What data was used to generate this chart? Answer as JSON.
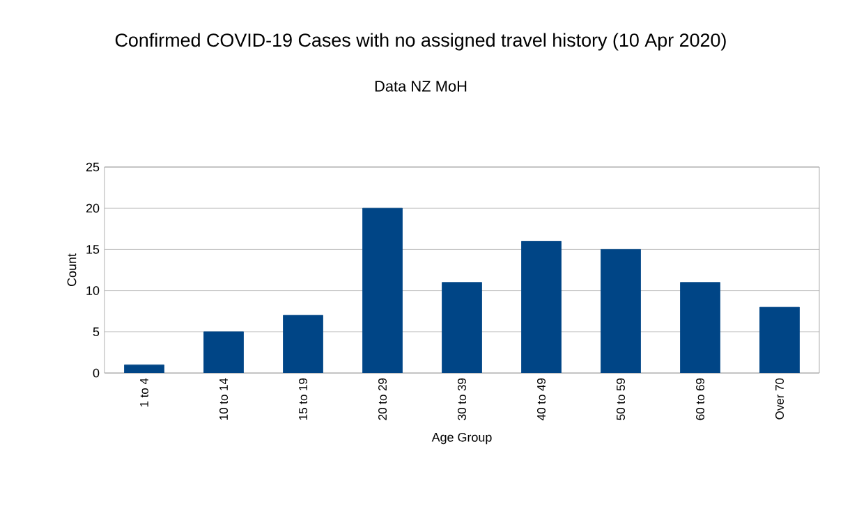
{
  "chart_data": {
    "type": "bar",
    "title": "Confirmed COVID-19 Cases with no assigned travel history (10 Apr 2020)",
    "subtitle": "Data NZ MoH",
    "categories": [
      "1 to 4",
      "10 to 14",
      "15 to 19",
      "20 to 29",
      "30 to 39",
      "40 to 49",
      "50 to 59",
      "60 to 69",
      "Over 70"
    ],
    "values": [
      1,
      5,
      7,
      20,
      11,
      16,
      15,
      11,
      8
    ],
    "color": "#004586",
    "xlabel": "Age Group",
    "ylabel": "Count",
    "ylim": [
      0,
      25
    ],
    "yticks": [
      0,
      5,
      10,
      15,
      20,
      25
    ],
    "grid": "y"
  }
}
